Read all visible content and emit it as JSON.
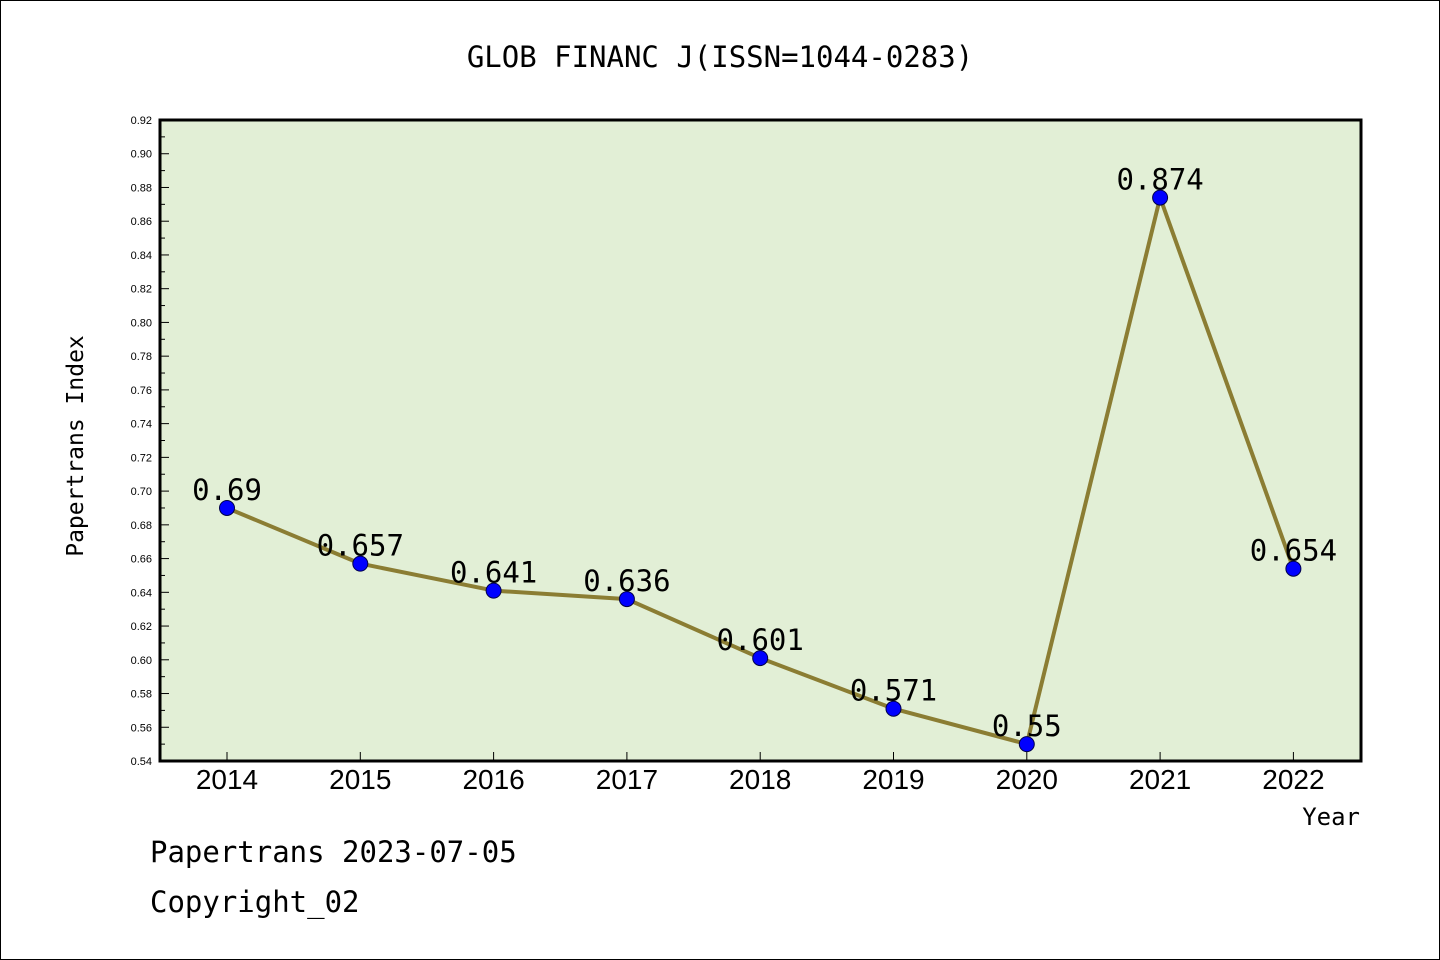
{
  "chart_data": {
    "type": "line",
    "title": "GLOB FINANC J(ISSN=1044-0283)",
    "xlabel": "Year",
    "ylabel": "Papertrans Index",
    "x": [
      "2014",
      "2015",
      "2016",
      "2017",
      "2018",
      "2019",
      "2020",
      "2021",
      "2022"
    ],
    "series": [
      {
        "values": [
          0.69,
          0.657,
          0.641,
          0.636,
          0.601,
          0.571,
          0.55,
          0.874,
          0.654
        ],
        "labels": [
          "0.69",
          "0.657",
          "0.641",
          "0.636",
          "0.601",
          "0.571",
          "0.55",
          "0.874",
          "0.654"
        ],
        "line_color": "#8b7d33",
        "marker_color": "#0000ff"
      }
    ],
    "ylim": [
      0.54,
      0.92
    ],
    "yticks": [
      "0.54",
      "0.56",
      "0.58",
      "0.60",
      "0.62",
      "0.64",
      "0.66",
      "0.68",
      "0.70",
      "0.72",
      "0.74",
      "0.76",
      "0.78",
      "0.80",
      "0.82",
      "0.84",
      "0.86",
      "0.88",
      "0.90",
      "0.92"
    ],
    "plot_background": "#e2efd6",
    "grid": false,
    "legend": "none"
  },
  "footer": {
    "date_line": "Papertrans 2023-07-05",
    "copyright_line": "Copyright_02"
  }
}
